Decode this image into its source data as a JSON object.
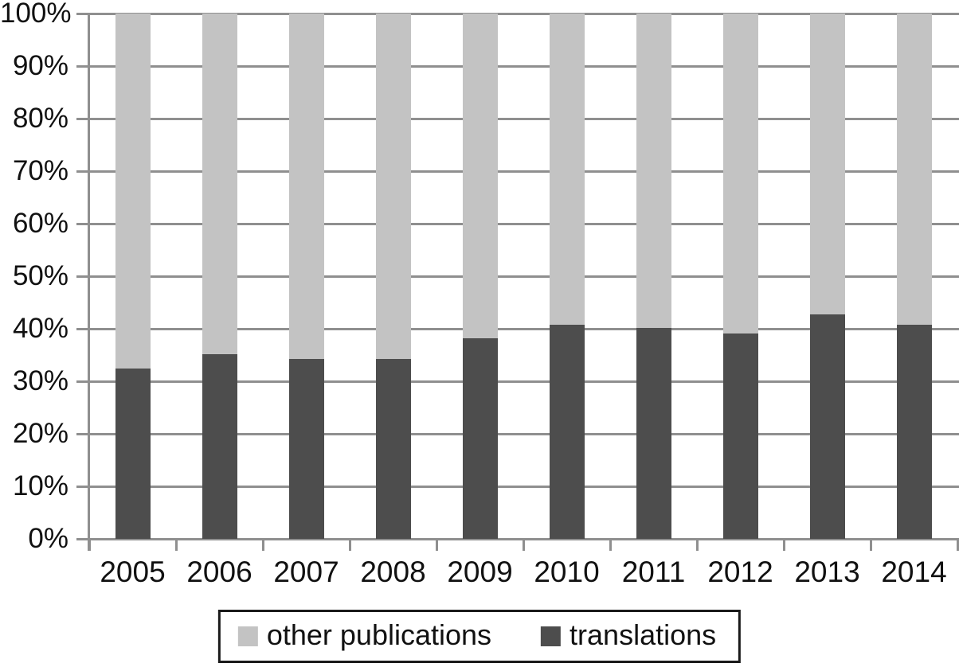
{
  "chart_data": {
    "type": "bar",
    "subtype": "stacked-100-percent-column",
    "title": "",
    "xlabel": "",
    "ylabel": "",
    "categories": [
      "2005",
      "2006",
      "2007",
      "2008",
      "2009",
      "2010",
      "2011",
      "2012",
      "2013",
      "2014"
    ],
    "series": [
      {
        "name": "translations",
        "color": "#4d4d4d",
        "values": [
          32.5,
          35.2,
          34.3,
          34.3,
          38.2,
          40.7,
          40.1,
          39.1,
          42.7,
          40.7
        ]
      },
      {
        "name": "other publications",
        "color": "#c3c3c3",
        "values": [
          67.5,
          64.8,
          65.7,
          65.7,
          61.8,
          59.3,
          59.9,
          60.9,
          57.3,
          59.3
        ]
      }
    ],
    "y_axis": {
      "min": 0,
      "max": 100,
      "step": 10,
      "tick_labels_top_to_bottom": [
        "100%",
        "90%",
        "80%",
        "70%",
        "60%",
        "50%",
        "40%",
        "30%",
        "20%",
        "10%",
        "0%"
      ]
    },
    "grid": true,
    "legend": {
      "position": "bottom-center",
      "border": true,
      "entries": [
        {
          "label": "other publications",
          "color": "#c3c3c3"
        },
        {
          "label": "translations",
          "color": "#4d4d4d"
        }
      ]
    }
  },
  "style": {
    "background": "#ffffff",
    "gridline_color": "#8f8f8f",
    "axis_color": "#8f8f8f",
    "text_color": "#111111",
    "legend_border_color": "#1a1a1a"
  }
}
